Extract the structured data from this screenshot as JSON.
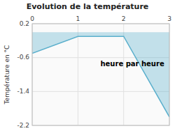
{
  "chart_data": {
    "type": "area",
    "title": "Evolution de la température",
    "ylabel": "Température en °C",
    "annotation": "heure par heure",
    "x": [
      0,
      1,
      2,
      3
    ],
    "values": [
      -0.5,
      -0.1,
      -0.1,
      -2.0
    ],
    "color": "#5aafcc",
    "xlim": [
      0,
      3
    ],
    "ylim": [
      -2.2,
      0.2
    ],
    "xticks": [
      0,
      1,
      2,
      3
    ],
    "yticks": [
      0.2,
      -0.6,
      -1.4,
      -2.2
    ],
    "grid": true
  }
}
